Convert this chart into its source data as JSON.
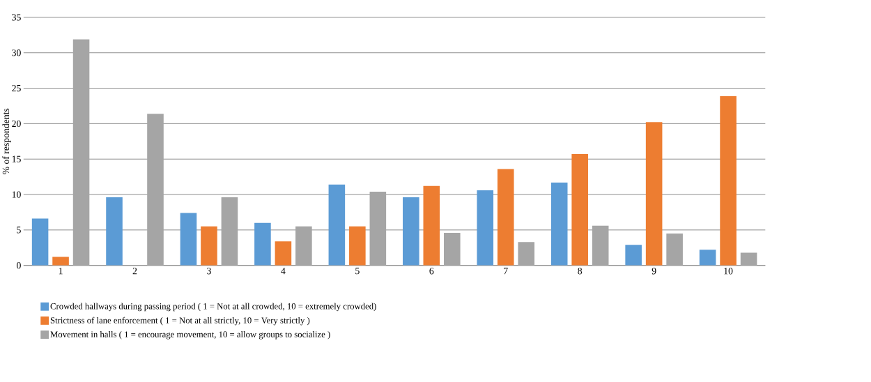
{
  "chart_data": {
    "type": "bar",
    "ylabel": "% of respondents",
    "categories": [
      "1",
      "2",
      "3",
      "4",
      "5",
      "6",
      "7",
      "8",
      "9",
      "10"
    ],
    "series": [
      {
        "name": "Crowded hallways during passing period ( 1 = Not at all crowded, 10 = extremely crowded)",
        "color": "#5b9bd5",
        "values": [
          6.6,
          9.6,
          7.4,
          6.0,
          11.4,
          9.6,
          10.6,
          11.7,
          2.9,
          2.2
        ]
      },
      {
        "name": "Strictness of lane enforcement ( 1 = Not at all strictly, 10 = Very strictly )",
        "color": "#ed7d31",
        "values": [
          1.2,
          0,
          5.5,
          3.4,
          5.5,
          11.2,
          13.6,
          15.7,
          20.2,
          23.9
        ]
      },
      {
        "name": "Movement in halls ( 1 = encourage movement, 10 = allow groups to socialize )",
        "color": "#a5a5a5",
        "values": [
          31.9,
          21.4,
          9.6,
          5.5,
          10.4,
          4.6,
          3.3,
          5.6,
          4.5,
          1.8
        ]
      }
    ],
    "ylim": [
      0,
      35
    ],
    "yticks": [
      0,
      5,
      10,
      15,
      20,
      25,
      30,
      35
    ],
    "grid": "y",
    "legend": "bottom"
  }
}
